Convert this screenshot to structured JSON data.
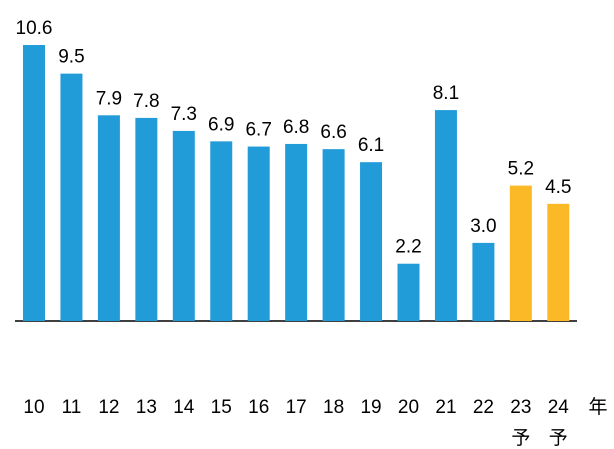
{
  "chart_data": {
    "type": "bar",
    "categories": [
      "10",
      "11",
      "12",
      "13",
      "14",
      "15",
      "16",
      "17",
      "18",
      "19",
      "20",
      "21",
      "22",
      "23",
      "24"
    ],
    "category_notes": [
      null,
      null,
      null,
      null,
      null,
      null,
      null,
      null,
      null,
      null,
      null,
      null,
      null,
      "予",
      "予"
    ],
    "x_unit": "年",
    "values": [
      10.6,
      9.5,
      7.9,
      7.8,
      7.3,
      6.9,
      6.7,
      6.8,
      6.6,
      6.1,
      2.2,
      8.1,
      3.0,
      5.2,
      4.5
    ],
    "value_labels": [
      "10.6",
      "9.5",
      "7.9",
      "7.8",
      "7.3",
      "6.9",
      "6.7",
      "6.8",
      "6.6",
      "6.1",
      "2.2",
      "8.1",
      "3.0",
      "5.2",
      "4.5"
    ],
    "colors": [
      "#229bd9",
      "#229bd9",
      "#229bd9",
      "#229bd9",
      "#229bd9",
      "#229bd9",
      "#229bd9",
      "#229bd9",
      "#229bd9",
      "#229bd9",
      "#229bd9",
      "#229bd9",
      "#229bd9",
      "#fcb927",
      "#fcb927"
    ],
    "ylim": [
      0,
      10.6
    ]
  }
}
